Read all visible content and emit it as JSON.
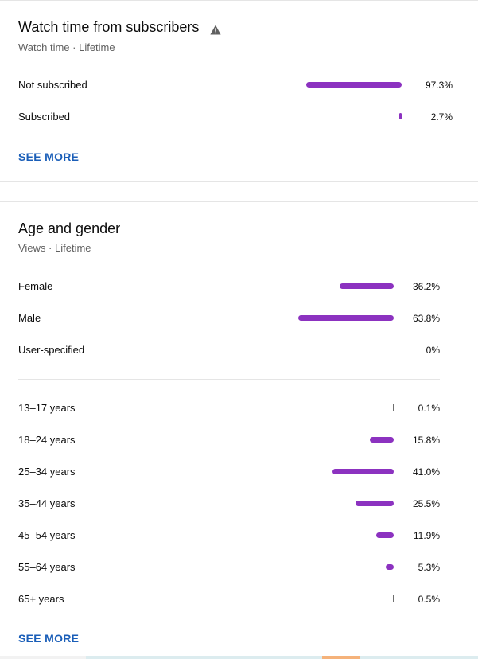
{
  "subscribers": {
    "title": "Watch time from subscribers",
    "warning_icon": "warning-triangle-icon",
    "subtitle": "Watch time · Lifetime",
    "rows": [
      {
        "label": "Not subscribed",
        "value": "97.3%",
        "fraction": 0.973
      },
      {
        "label": "Subscribed",
        "value": "2.7%",
        "fraction": 0.027
      }
    ],
    "see_more": "SEE MORE"
  },
  "age_gender": {
    "title": "Age and gender",
    "subtitle": "Views · Lifetime",
    "gender_rows": [
      {
        "label": "Female",
        "value": "36.2%",
        "fraction": 0.362
      },
      {
        "label": "Male",
        "value": "63.8%",
        "fraction": 0.638
      },
      {
        "label": "User-specified",
        "value": "0%",
        "fraction": 0
      }
    ],
    "age_rows": [
      {
        "label": "13–17 years",
        "value": "0.1%",
        "fraction": 0.001
      },
      {
        "label": "18–24 years",
        "value": "15.8%",
        "fraction": 0.158
      },
      {
        "label": "25–34 years",
        "value": "41.0%",
        "fraction": 0.41
      },
      {
        "label": "35–44 years",
        "value": "25.5%",
        "fraction": 0.255
      },
      {
        "label": "45–54 years",
        "value": "11.9%",
        "fraction": 0.119
      },
      {
        "label": "55–64 years",
        "value": "5.3%",
        "fraction": 0.053
      },
      {
        "label": "65+ years",
        "value": "0.5%",
        "fraction": 0.005
      }
    ],
    "see_more": "SEE MORE"
  },
  "colors": {
    "bar": "#8c32c0",
    "link": "#1a5eb8"
  }
}
